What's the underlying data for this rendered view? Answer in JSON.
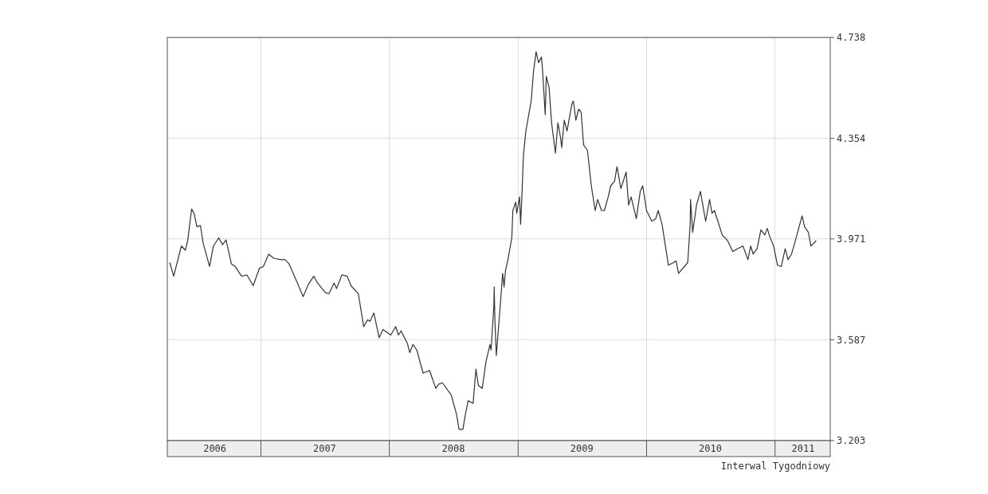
{
  "chart_data": {
    "type": "line",
    "grid": true,
    "marker": "none",
    "line_style": "solid",
    "xlim": [
      "2006-04-10",
      "2011-06-07"
    ],
    "xticks": [
      {
        "value": "2007-01-01",
        "label": null
      },
      {
        "value": "2008-01-01",
        "label": null
      },
      {
        "value": "2009-01-01",
        "label": null
      },
      {
        "value": "2010-01-01",
        "label": null
      },
      {
        "value": "2011-01-01",
        "label": null
      },
      {
        "value": "2006-08-23",
        "label": "2006"
      },
      {
        "value": "2007-07-01",
        "label": "2007"
      },
      {
        "value": "2008-07-01",
        "label": "2008"
      },
      {
        "value": "2009-07-01",
        "label": "2009"
      },
      {
        "value": "2010-07-01",
        "label": "2010"
      },
      {
        "value": "2011-03-22",
        "label": "2011"
      }
    ],
    "ylim": [
      3.203,
      4.738
    ],
    "yticks": [
      3.203,
      3.587,
      3.971,
      4.354,
      4.738
    ],
    "annotations": [
      "Interwal Tygodniowy"
    ],
    "series": [
      {
        "color": "#333333",
        "x": [
          "2006-04-17",
          "2006-04-28",
          "2006-05-20",
          "2006-05-31",
          "2006-06-07",
          "2006-06-18",
          "2006-06-25",
          "2006-07-03",
          "2006-07-13",
          "2006-07-21",
          "2006-08-08",
          "2006-08-19",
          "2006-09-03",
          "2006-09-14",
          "2006-09-24",
          "2006-10-09",
          "2006-10-20",
          "2006-11-07",
          "2006-11-22",
          "2006-12-10",
          "2006-12-28",
          "2007-01-08",
          "2007-01-23",
          "2007-02-07",
          "2007-02-28",
          "2007-03-11",
          "2007-03-22",
          "2007-04-13",
          "2007-05-01",
          "2007-05-16",
          "2007-05-31",
          "2007-06-11",
          "2007-07-03",
          "2007-07-13",
          "2007-07-28",
          "2007-08-04",
          "2007-08-19",
          "2007-09-03",
          "2007-09-14",
          "2007-09-28",
          "2007-10-05",
          "2007-10-20",
          "2007-10-31",
          "2007-11-07",
          "2007-11-18",
          "2007-12-03",
          "2007-12-14",
          "2008-01-05",
          "2008-01-19",
          "2008-01-27",
          "2008-02-03",
          "2008-02-21",
          "2008-02-28",
          "2008-03-08",
          "2008-03-19",
          "2008-04-06",
          "2008-04-24",
          "2008-05-01",
          "2008-05-12",
          "2008-05-20",
          "2008-05-31",
          "2008-06-25",
          "2008-07-10",
          "2008-07-17",
          "2008-07-28",
          "2008-08-04",
          "2008-08-12",
          "2008-08-26",
          "2008-09-03",
          "2008-09-10",
          "2008-09-21",
          "2008-10-02",
          "2008-10-13",
          "2008-10-16",
          "2008-10-24",
          "2008-10-25",
          "2008-10-27",
          "2008-10-31",
          "2008-11-11",
          "2008-11-18",
          "2008-11-22",
          "2008-11-26",
          "2008-12-03",
          "2008-12-14",
          "2008-12-17",
          "2008-12-25",
          "2008-12-28",
          "2009-01-05",
          "2009-01-08",
          "2009-01-12",
          "2009-01-16",
          "2009-01-23",
          "2009-02-07",
          "2009-02-14",
          "2009-02-21",
          "2009-02-28",
          "2009-03-08",
          "2009-03-11",
          "2009-03-19",
          "2009-03-22",
          "2009-03-30",
          "2009-04-06",
          "2009-04-17",
          "2009-04-24",
          "2009-05-01",
          "2009-05-05",
          "2009-05-12",
          "2009-05-20",
          "2009-05-27",
          "2009-06-03",
          "2009-06-07",
          "2009-06-14",
          "2009-06-22",
          "2009-06-29",
          "2009-07-06",
          "2009-07-17",
          "2009-07-28",
          "2009-08-08",
          "2009-08-15",
          "2009-08-26",
          "2009-09-03",
          "2009-09-14",
          "2009-09-21",
          "2009-10-02",
          "2009-10-09",
          "2009-10-20",
          "2009-11-04",
          "2009-11-11",
          "2009-11-18",
          "2009-12-03",
          "2009-12-14",
          "2009-12-21",
          "2010-01-01",
          "2010-01-16",
          "2010-01-27",
          "2010-02-03",
          "2010-02-14",
          "2010-03-04",
          "2010-03-19",
          "2010-03-26",
          "2010-04-02",
          "2010-04-28",
          "2010-05-05",
          "2010-05-06",
          "2010-05-12",
          "2010-05-23",
          "2010-06-03",
          "2010-06-18",
          "2010-06-29",
          "2010-07-06",
          "2010-07-13",
          "2010-08-04",
          "2010-08-19",
          "2010-09-03",
          "2010-09-17",
          "2010-10-02",
          "2010-10-16",
          "2010-10-24",
          "2010-10-31",
          "2010-11-11",
          "2010-11-22",
          "2010-12-03",
          "2010-12-10",
          "2010-12-17",
          "2010-12-28",
          "2011-01-08",
          "2011-01-19",
          "2011-01-30",
          "2011-02-07",
          "2011-02-17",
          "2011-02-28",
          "2011-03-19",
          "2011-03-26",
          "2011-04-06",
          "2011-04-13",
          "2011-04-21",
          "2011-04-28"
        ],
        "values": [
          3.881,
          3.829,
          3.944,
          3.928,
          3.965,
          4.085,
          4.069,
          4.017,
          4.022,
          3.954,
          3.866,
          3.944,
          3.975,
          3.949,
          3.967,
          3.876,
          3.866,
          3.829,
          3.834,
          3.793,
          3.86,
          3.866,
          3.913,
          3.897,
          3.892,
          3.892,
          3.876,
          3.808,
          3.751,
          3.798,
          3.829,
          3.803,
          3.767,
          3.762,
          3.803,
          3.782,
          3.834,
          3.829,
          3.793,
          3.772,
          3.762,
          3.637,
          3.663,
          3.657,
          3.689,
          3.595,
          3.626,
          3.605,
          3.637,
          3.605,
          3.621,
          3.574,
          3.538,
          3.569,
          3.548,
          3.46,
          3.47,
          3.444,
          3.402,
          3.418,
          3.423,
          3.376,
          3.303,
          3.246,
          3.246,
          3.303,
          3.355,
          3.345,
          3.475,
          3.413,
          3.402,
          3.506,
          3.569,
          3.548,
          3.715,
          3.788,
          3.663,
          3.527,
          3.715,
          3.84,
          3.788,
          3.85,
          3.892,
          3.975,
          4.079,
          4.111,
          4.069,
          4.131,
          4.027,
          4.142,
          4.288,
          4.382,
          4.496,
          4.611,
          4.684,
          4.642,
          4.663,
          4.621,
          4.444,
          4.59,
          4.548,
          4.413,
          4.298,
          4.413,
          4.361,
          4.319,
          4.423,
          4.382,
          4.434,
          4.486,
          4.496,
          4.423,
          4.465,
          4.454,
          4.329,
          4.308,
          4.173,
          4.079,
          4.121,
          4.079,
          4.079,
          4.131,
          4.173,
          4.191,
          4.246,
          4.163,
          4.225,
          4.1,
          4.131,
          4.048,
          4.152,
          4.173,
          4.079,
          4.038,
          4.048,
          4.079,
          4.027,
          3.871,
          3.881,
          3.887,
          3.84,
          3.881,
          4.027,
          4.121,
          3.996,
          4.1,
          4.152,
          4.038,
          4.121,
          4.069,
          4.079,
          3.986,
          3.965,
          3.923,
          3.934,
          3.944,
          3.892,
          3.944,
          3.913,
          3.934,
          4.006,
          3.986,
          4.011,
          3.98,
          3.944,
          3.871,
          3.866,
          3.934,
          3.892,
          3.913,
          3.965,
          4.059,
          4.017,
          3.996,
          3.944,
          3.954,
          3.965
        ]
      }
    ]
  }
}
